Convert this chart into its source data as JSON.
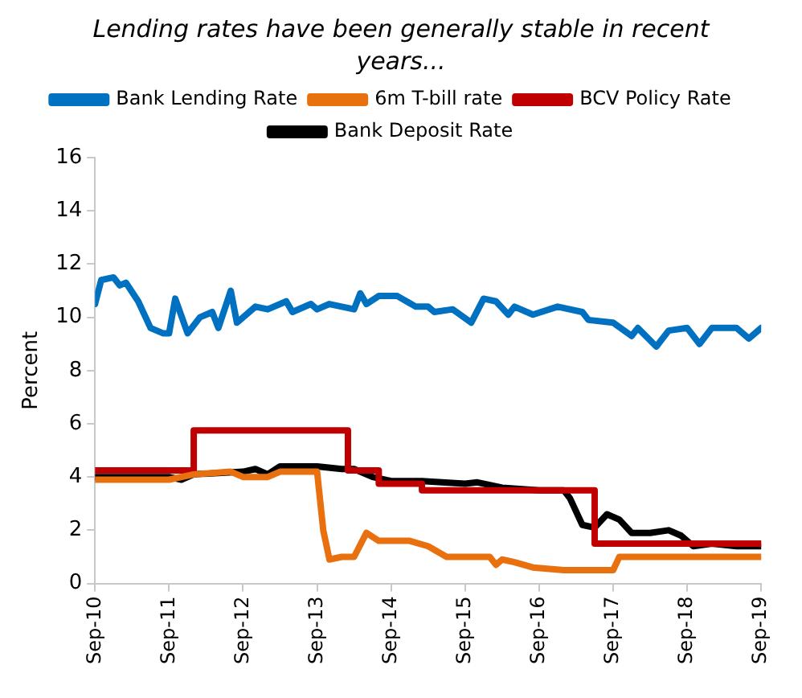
{
  "chart_data": {
    "type": "line",
    "title": "Lending rates have been generally stable in recent years...",
    "ylabel": "Percent",
    "xlim": [
      "2010-09",
      "2019-09"
    ],
    "xticks": [
      {
        "value": "2010-09",
        "label": "Sep-10"
      },
      {
        "value": "2011-09",
        "label": "Sep-11"
      },
      {
        "value": "2012-09",
        "label": "Sep-12"
      },
      {
        "value": "2013-09",
        "label": "Sep-13"
      },
      {
        "value": "2014-09",
        "label": "Sep-14"
      },
      {
        "value": "2015-09",
        "label": "Sep-15"
      },
      {
        "value": "2016-09",
        "label": "Sep-16"
      },
      {
        "value": "2017-09",
        "label": "Sep-17"
      },
      {
        "value": "2018-09",
        "label": "Sep-18"
      },
      {
        "value": "2019-09",
        "label": "Sep-19"
      }
    ],
    "ylim": [
      0,
      16
    ],
    "yticks": [
      0,
      2,
      4,
      6,
      8,
      10,
      12,
      14,
      16
    ],
    "grid": false,
    "legend": "top",
    "marker": "none",
    "series": [
      {
        "name": "Bank Lending Rate",
        "color": "#0070c0",
        "x": [
          "2010-09",
          "2010-10",
          "2010-12",
          "2011-01",
          "2011-02",
          "2011-04",
          "2011-06",
          "2011-08",
          "2011-09",
          "2011-10",
          "2011-12",
          "2012-02",
          "2012-04",
          "2012-05",
          "2012-07",
          "2012-08",
          "2012-11",
          "2013-01",
          "2013-04",
          "2013-05",
          "2013-08",
          "2013-09",
          "2013-11",
          "2014-03",
          "2014-04",
          "2014-05",
          "2014-07",
          "2014-10",
          "2015-01",
          "2015-03",
          "2015-04",
          "2015-07",
          "2015-10",
          "2015-12",
          "2016-02",
          "2016-04",
          "2016-05",
          "2016-08",
          "2016-12",
          "2017-04",
          "2017-05",
          "2017-09",
          "2017-12",
          "2018-01",
          "2018-04",
          "2018-06",
          "2018-09",
          "2018-11",
          "2019-01",
          "2019-05",
          "2019-07",
          "2019-09"
        ],
        "values": [
          10.5,
          11.4,
          11.5,
          11.2,
          11.3,
          10.6,
          9.6,
          9.4,
          9.4,
          10.7,
          9.4,
          10.0,
          10.2,
          9.6,
          11.0,
          9.8,
          10.4,
          10.3,
          10.6,
          10.2,
          10.5,
          10.3,
          10.5,
          10.3,
          10.9,
          10.5,
          10.8,
          10.8,
          10.4,
          10.4,
          10.2,
          10.3,
          9.8,
          10.7,
          10.6,
          10.1,
          10.4,
          10.1,
          10.4,
          10.2,
          9.9,
          9.8,
          9.3,
          9.6,
          8.9,
          9.5,
          9.6,
          9.0,
          9.6,
          9.6,
          9.2,
          9.6
        ]
      },
      {
        "name": "6m T-bill rate",
        "color": "#e8700e",
        "x": [
          "2010-09",
          "2011-09",
          "2012-01",
          "2012-07",
          "2012-09",
          "2013-01",
          "2013-03",
          "2013-09",
          "2013-10",
          "2013-11",
          "2014-01",
          "2014-03",
          "2014-05",
          "2014-07",
          "2014-12",
          "2015-03",
          "2015-06",
          "2016-01",
          "2016-02",
          "2016-03",
          "2016-05",
          "2016-08",
          "2017-01",
          "2017-09",
          "2017-10",
          "2019-09"
        ],
        "values": [
          3.9,
          3.9,
          4.1,
          4.2,
          4.0,
          4.0,
          4.2,
          4.2,
          2.0,
          0.9,
          1.0,
          1.0,
          1.9,
          1.6,
          1.6,
          1.4,
          1.0,
          1.0,
          0.7,
          0.9,
          0.8,
          0.6,
          0.5,
          0.5,
          1.0,
          1.0
        ]
      },
      {
        "name": "BCV Policy Rate",
        "color": "#c00000",
        "type": "step",
        "x": [
          "2010-09",
          "2012-01",
          "2014-02",
          "2014-07",
          "2015-02",
          "2017-06",
          "2019-09"
        ],
        "values": [
          4.25,
          5.75,
          4.25,
          3.75,
          3.5,
          1.5,
          1.5
        ]
      },
      {
        "name": "Bank Deposit Rate",
        "color": "#000000",
        "x": [
          "2010-09",
          "2011-09",
          "2011-11",
          "2012-01",
          "2012-09",
          "2012-11",
          "2013-01",
          "2013-03",
          "2013-09",
          "2014-01",
          "2014-03",
          "2014-06",
          "2014-09",
          "2015-02",
          "2015-09",
          "2015-11",
          "2016-03",
          "2016-09",
          "2017-01",
          "2017-02",
          "2017-04",
          "2017-06",
          "2017-08",
          "2017-10",
          "2017-12",
          "2018-03",
          "2018-06",
          "2018-08",
          "2018-10",
          "2019-01",
          "2019-05",
          "2019-09"
        ],
        "values": [
          4.0,
          4.0,
          3.9,
          4.1,
          4.2,
          4.3,
          4.1,
          4.4,
          4.4,
          4.3,
          4.3,
          4.0,
          3.85,
          3.85,
          3.75,
          3.8,
          3.6,
          3.5,
          3.5,
          3.2,
          2.2,
          2.1,
          2.6,
          2.4,
          1.9,
          1.9,
          2.0,
          1.8,
          1.4,
          1.5,
          1.4,
          1.4
        ]
      }
    ]
  }
}
